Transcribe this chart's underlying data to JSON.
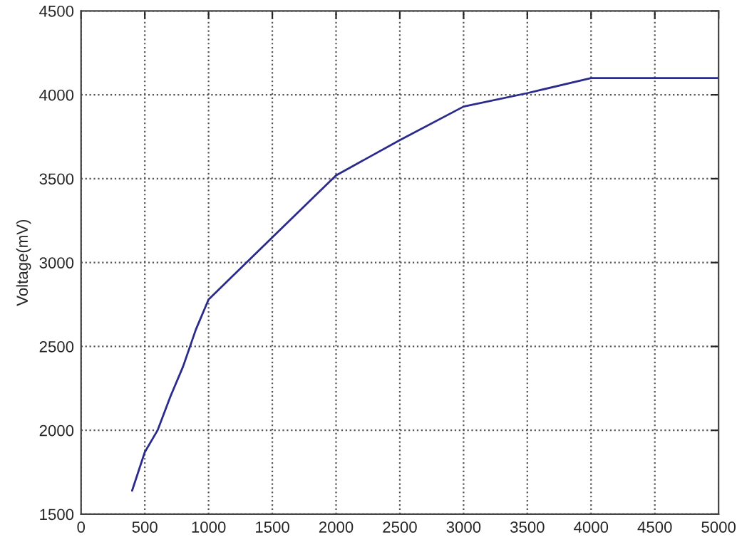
{
  "chart_data": {
    "type": "line",
    "ylabel": "Voltage(mV)",
    "x": [
      400,
      500,
      600,
      700,
      800,
      900,
      1000,
      1500,
      2000,
      2500,
      3000,
      3500,
      4000,
      5000
    ],
    "series": [
      {
        "color": "#2b2b8c",
        "values": [
          1640,
          1870,
          2000,
          2200,
          2380,
          2600,
          2780,
          3150,
          3520,
          3730,
          3930,
          4010,
          4100,
          4100
        ]
      }
    ],
    "xlim": [
      0,
      5000
    ],
    "xticks": [
      0,
      500,
      1000,
      1500,
      2000,
      2500,
      3000,
      3500,
      4000,
      4500,
      5000
    ],
    "ylim": [
      1500,
      4500
    ],
    "yticks": [
      1500,
      2000,
      2500,
      3000,
      3500,
      4000,
      4500
    ],
    "grid": true,
    "line_style": "solid",
    "marker": "none"
  }
}
